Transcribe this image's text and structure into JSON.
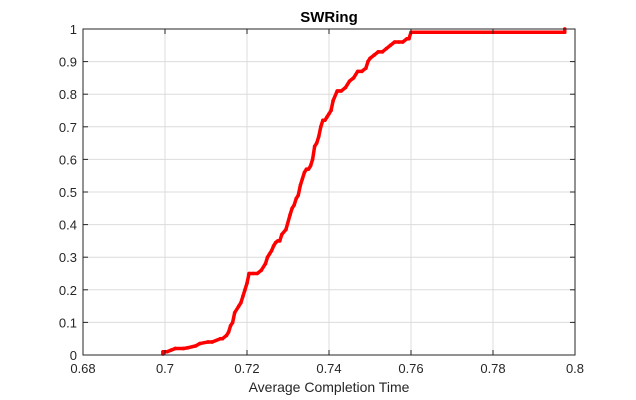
{
  "chart_data": {
    "type": "line",
    "title": "SWRing",
    "xlabel": "Average Completion Time",
    "ylabel": "",
    "xlim": [
      0.68,
      0.8
    ],
    "ylim": [
      0,
      1
    ],
    "x_ticks": [
      0.68,
      0.7,
      0.72,
      0.74,
      0.76,
      0.78,
      0.8
    ],
    "x_tick_labels": [
      "0.68",
      "0.7",
      "0.72",
      "0.74",
      "0.76",
      "0.78",
      "0.8"
    ],
    "y_ticks": [
      0,
      0.1,
      0.2,
      0.3,
      0.4,
      0.5,
      0.6,
      0.7,
      0.8,
      0.9,
      1
    ],
    "y_tick_labels": [
      "0",
      "0.1",
      "0.2",
      "0.3",
      "0.4",
      "0.5",
      "0.6",
      "0.7",
      "0.8",
      "0.9",
      "1"
    ],
    "grid": true,
    "series": [
      {
        "color": "#ff0000",
        "x": [
          0.6995,
          0.6995,
          0.7005,
          0.7015,
          0.7025,
          0.7045,
          0.7055,
          0.7075,
          0.7085,
          0.7105,
          0.7115,
          0.7135,
          0.714,
          0.715,
          0.7155,
          0.716,
          0.7165,
          0.717,
          0.718,
          0.7185,
          0.719,
          0.7195,
          0.72,
          0.7205,
          0.7215,
          0.7225,
          0.7235,
          0.7245,
          0.725,
          0.7255,
          0.726,
          0.7265,
          0.727,
          0.7275,
          0.728,
          0.7285,
          0.7295,
          0.7305,
          0.731,
          0.7315,
          0.732,
          0.7325,
          0.733,
          0.7335,
          0.734,
          0.7345,
          0.735,
          0.7355,
          0.736,
          0.7365,
          0.737,
          0.7375,
          0.738,
          0.7385,
          0.739,
          0.7395,
          0.74,
          0.7405,
          0.741,
          0.742,
          0.7425,
          0.743,
          0.744,
          0.745,
          0.746,
          0.747,
          0.748,
          0.749,
          0.7495,
          0.75,
          0.751,
          0.752,
          0.753,
          0.754,
          0.755,
          0.756,
          0.757,
          0.758,
          0.759,
          0.7595,
          0.76,
          0.765,
          0.775,
          0.785,
          0.7975,
          0.7975
        ],
        "y": [
          0.003,
          0.01,
          0.01,
          0.015,
          0.02,
          0.02,
          0.022,
          0.028,
          0.035,
          0.04,
          0.04,
          0.05,
          0.05,
          0.06,
          0.07,
          0.09,
          0.1,
          0.13,
          0.15,
          0.16,
          0.18,
          0.2,
          0.22,
          0.25,
          0.25,
          0.25,
          0.26,
          0.28,
          0.3,
          0.31,
          0.32,
          0.335,
          0.345,
          0.35,
          0.35,
          0.37,
          0.385,
          0.43,
          0.45,
          0.46,
          0.48,
          0.49,
          0.52,
          0.54,
          0.56,
          0.57,
          0.57,
          0.58,
          0.6,
          0.64,
          0.65,
          0.67,
          0.7,
          0.72,
          0.72,
          0.73,
          0.74,
          0.75,
          0.78,
          0.81,
          0.81,
          0.81,
          0.82,
          0.84,
          0.85,
          0.87,
          0.87,
          0.88,
          0.9,
          0.91,
          0.92,
          0.93,
          0.93,
          0.94,
          0.95,
          0.96,
          0.96,
          0.96,
          0.97,
          0.97,
          0.99,
          0.99,
          0.99,
          0.99,
          0.99,
          1.0
        ]
      }
    ]
  }
}
